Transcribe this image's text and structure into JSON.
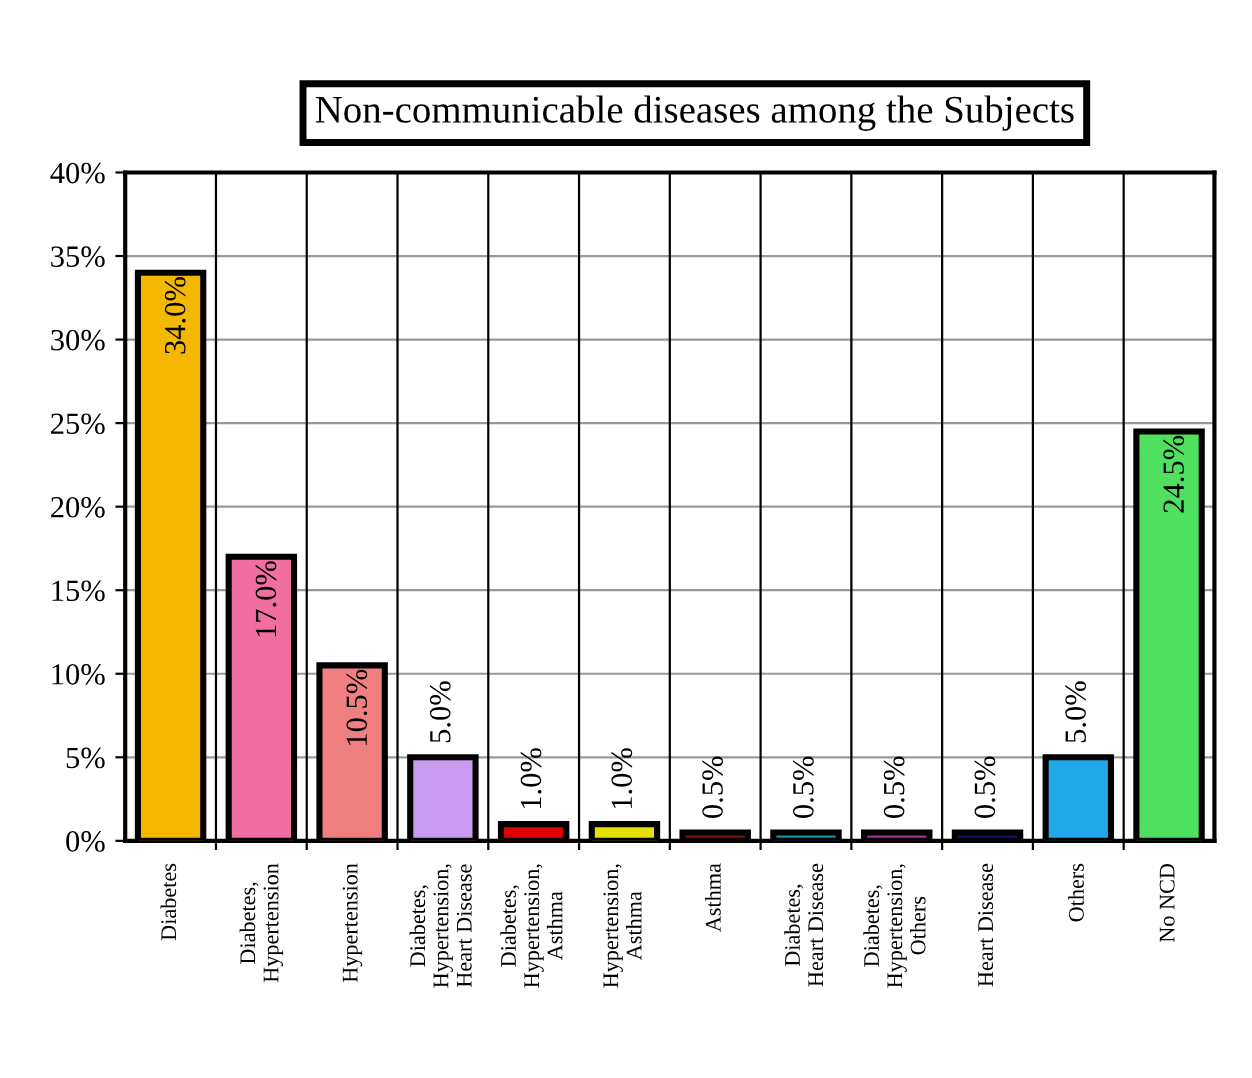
{
  "chart_data": {
    "type": "bar",
    "title": "Non-communicable diseases among the Subjects",
    "categories": [
      "Diabetes",
      "Diabetes,\nHypertension",
      "Hypertension",
      "Diabetes,\nHypertension,\nHeart Disease",
      "Diabetes,\nHypertension,\nAsthma",
      "Hypertension,\nAsthma",
      "Asthma",
      "Diabetes,\nHeart Disease",
      "Diabetes,\nHypertension,\nOthers",
      "Heart Disease",
      "Others",
      "No NCD"
    ],
    "values": [
      34.0,
      17.0,
      10.5,
      5.0,
      1.0,
      1.0,
      0.5,
      0.5,
      0.5,
      0.5,
      5.0,
      24.5
    ],
    "colors": [
      "#f5b800",
      "#f06fa0",
      "#f08080",
      "#c89af0",
      "#e00000",
      "#e8e000",
      "#7a1010",
      "#1a8aa8",
      "#a0308a",
      "#101070",
      "#20a8e8",
      "#50e060"
    ],
    "value_labels": [
      "34.0%",
      "17.0%",
      "10.5%",
      "5.0%",
      "1.0%",
      "1.0%",
      "0.5%",
      "0.5%",
      "0.5%",
      "0.5%",
      "5.0%",
      "24.5%"
    ],
    "ylim": [
      0,
      40
    ],
    "yticks": [
      {
        "value": 0,
        "label": "0%"
      },
      {
        "value": 5,
        "label": "5%"
      },
      {
        "value": 10,
        "label": "10%"
      },
      {
        "value": 15,
        "label": "15%"
      },
      {
        "value": 20,
        "label": "20%"
      },
      {
        "value": 25,
        "label": "25%"
      },
      {
        "value": 30,
        "label": "30%"
      },
      {
        "value": 35,
        "label": "35%"
      },
      {
        "value": 40,
        "label": "40%"
      }
    ],
    "grid": true
  }
}
